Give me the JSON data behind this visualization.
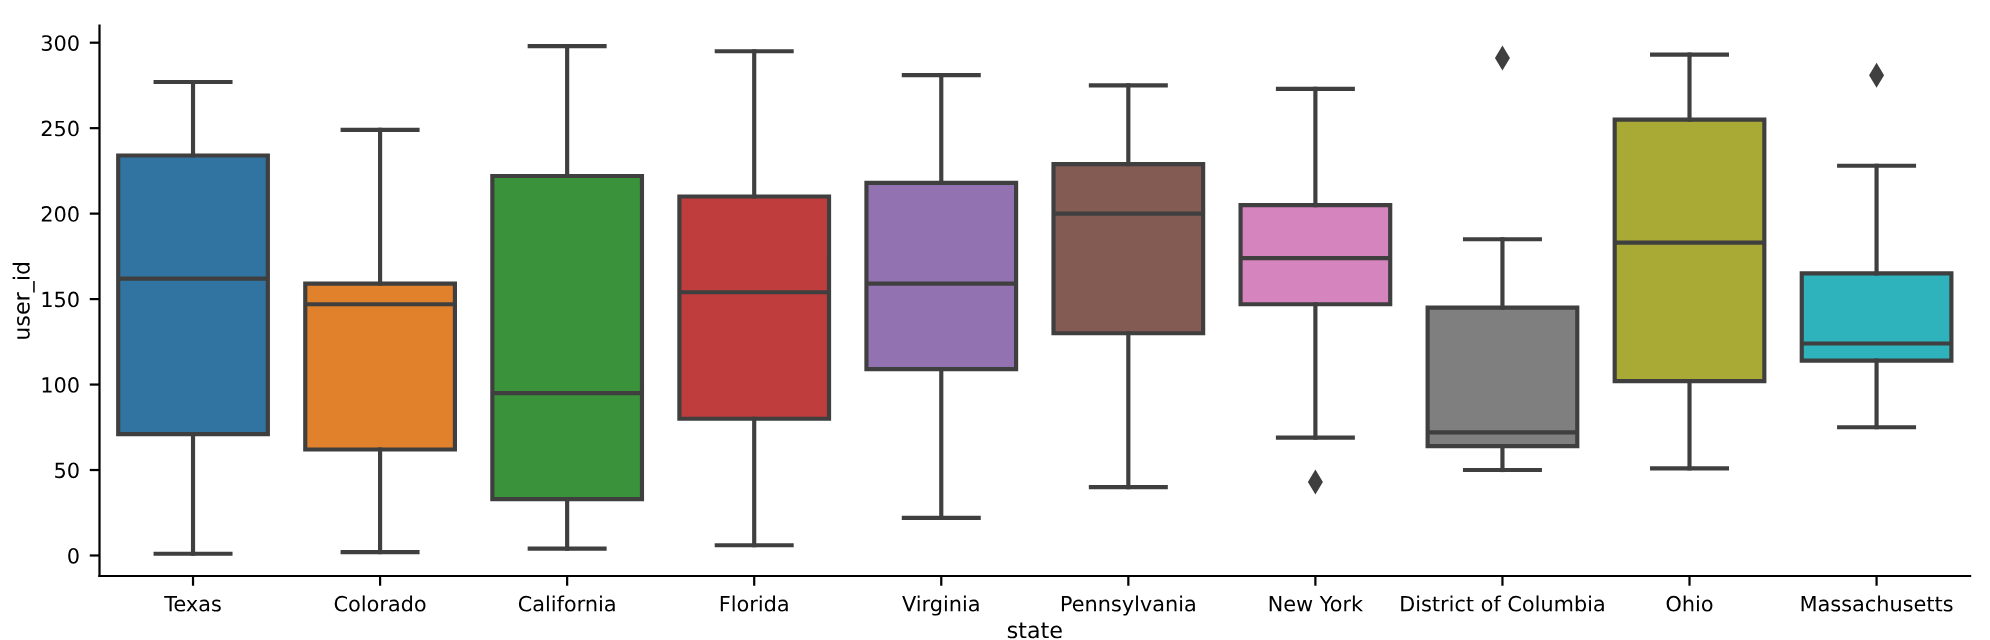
{
  "chart_data": {
    "type": "box",
    "xlabel": "state",
    "ylabel": "user_id",
    "categories": [
      "Texas",
      "Colorado",
      "California",
      "Florida",
      "Virginia",
      "Pennsylvania",
      "New York",
      "District of Columbia",
      "Ohio",
      "Massachusetts"
    ],
    "colors": [
      "#3274a1",
      "#e1812c",
      "#3a923a",
      "#c03d3e",
      "#9372b2",
      "#845b53",
      "#d684bd",
      "#7f7f7f",
      "#a9aa35",
      "#2eb3bc"
    ],
    "boxes": [
      {
        "low": 1,
        "q1": 71,
        "median": 162,
        "q3": 234,
        "high": 277
      },
      {
        "low": 2,
        "q1": 62,
        "median": 147,
        "q3": 159,
        "high": 249
      },
      {
        "low": 4,
        "q1": 33,
        "median": 95,
        "q3": 222,
        "high": 298
      },
      {
        "low": 6,
        "q1": 80,
        "median": 154,
        "q3": 210,
        "high": 295
      },
      {
        "low": 22,
        "q1": 109,
        "median": 159,
        "q3": 218,
        "high": 281
      },
      {
        "low": 40,
        "q1": 130,
        "median": 200,
        "q3": 229,
        "high": 275
      },
      {
        "low": 69,
        "q1": 147,
        "median": 174,
        "q3": 205,
        "high": 273,
        "outliers": [
          43
        ]
      },
      {
        "low": 50,
        "q1": 64,
        "median": 72,
        "q3": 145,
        "high": 185,
        "outliers": [
          291
        ]
      },
      {
        "low": 51,
        "q1": 102,
        "median": 183,
        "q3": 255,
        "high": 293
      },
      {
        "low": 75,
        "q1": 114,
        "median": 124,
        "q3": 165,
        "high": 228,
        "outliers": [
          281
        ]
      }
    ],
    "ylim": [
      -12,
      310
    ],
    "yticks": [
      0,
      50,
      100,
      150,
      200,
      250,
      300
    ],
    "grid": false,
    "legend": false
  }
}
